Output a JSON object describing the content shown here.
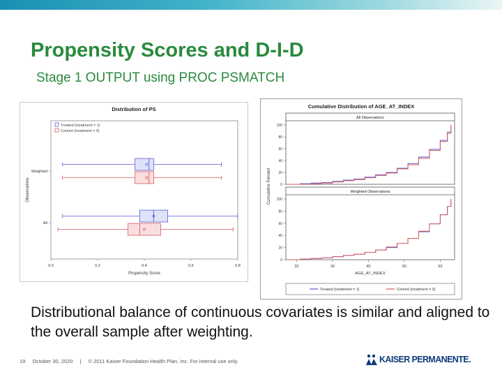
{
  "slide": {
    "title": "Propensity Scores and D-I-D",
    "subtitle": "Stage 1 OUTPUT using PROC PSMATCH",
    "body": "Distributional balance of continuous covariates is similar and aligned to the overall sample after weighting.",
    "footer": {
      "page_number": "19",
      "date": "October 30, 2020",
      "separator": "|",
      "copyright": "© 2011 Kaiser Foundation Health Plan, Inc. For internal use only."
    },
    "logo": {
      "text": "KAISER PERMANENTE.",
      "color": "#0d3b7a"
    },
    "accent_colors": {
      "title": "#2a8a3e",
      "treated": "#5b5bd6",
      "control": "#d65b5b"
    }
  },
  "chart_data": [
    {
      "type": "boxplot",
      "title": "Distribution of PS",
      "xlabel": "Propensity Score",
      "ylabel": "Observations",
      "xlim": [
        0,
        0.8
      ],
      "x_ticks": [
        "0.0",
        "0.2",
        "0.4",
        "0.6",
        "0.8"
      ],
      "legend": {
        "placement": "top-left",
        "entries": [
          "Treated (treatment = 1)",
          "Control (treatment = 0)"
        ]
      },
      "groups": [
        {
          "label": "Weighted",
          "boxes": [
            {
              "series": "Treated (treatment = 1)",
              "min": 0.05,
              "q1": 0.36,
              "median": 0.42,
              "q3": 0.44,
              "max": 0.73,
              "mean": 0.41
            },
            {
              "series": "Control (treatment = 0)",
              "min": 0.05,
              "q1": 0.36,
              "median": 0.42,
              "q3": 0.44,
              "max": 0.73,
              "mean": 0.41
            }
          ]
        },
        {
          "label": "All",
          "boxes": [
            {
              "series": "Treated (treatment = 1)",
              "min": 0.05,
              "q1": 0.38,
              "median": 0.44,
              "q3": 0.5,
              "max": 0.8,
              "mean": 0.44
            },
            {
              "series": "Control (treatment = 0)",
              "min": 0.03,
              "q1": 0.33,
              "median": 0.38,
              "q3": 0.47,
              "max": 0.78,
              "mean": 0.4
            }
          ]
        }
      ]
    },
    {
      "type": "line",
      "title": "Cumulative Distribution of AGE_AT_INDEX",
      "xlabel": "AGE_AT_INDEX",
      "ylabel": "Cumulative Percent",
      "xlim": [
        17,
        64
      ],
      "ylim": [
        0,
        100
      ],
      "x_ticks": [
        "20",
        "30",
        "40",
        "50",
        "60"
      ],
      "y_ticks": [
        "0",
        "20",
        "40",
        "60",
        "80",
        "100"
      ],
      "legend": {
        "placement": "bottom",
        "entries": [
          "Treated (treatment = 1)",
          "Control (treatment = 0)"
        ]
      },
      "panels": [
        {
          "label": "All Observations",
          "series": [
            {
              "name": "Treated (treatment = 1)",
              "x": [
                18,
                21,
                24,
                27,
                30,
                33,
                36,
                39,
                42,
                45,
                48,
                51,
                54,
                57,
                60,
                62,
                63
              ],
              "y": [
                0,
                1,
                2,
                3,
                5,
                7,
                9,
                12,
                16,
                20,
                27,
                35,
                46,
                59,
                74,
                88,
                100
              ]
            },
            {
              "name": "Control (treatment = 0)",
              "x": [
                18,
                21,
                24,
                27,
                30,
                33,
                36,
                39,
                42,
                45,
                48,
                51,
                54,
                57,
                60,
                62,
                63
              ],
              "y": [
                0,
                0,
                1,
                2,
                4,
                6,
                8,
                11,
                15,
                19,
                26,
                33,
                44,
                57,
                72,
                86,
                100
              ]
            }
          ]
        },
        {
          "label": "Weighted Observations",
          "series": [
            {
              "name": "Treated (treatment = 1)",
              "x": [
                18,
                21,
                24,
                27,
                30,
                33,
                36,
                39,
                42,
                45,
                48,
                51,
                54,
                57,
                60,
                62,
                63
              ],
              "y": [
                0,
                1,
                2,
                3,
                5,
                7,
                9,
                12,
                16,
                20,
                27,
                35,
                46,
                59,
                74,
                88,
                100
              ]
            },
            {
              "name": "Control (treatment = 0)",
              "x": [
                18,
                21,
                24,
                27,
                30,
                33,
                36,
                39,
                42,
                45,
                48,
                51,
                54,
                57,
                60,
                62,
                63
              ],
              "y": [
                0,
                1,
                2,
                3,
                5,
                7,
                9,
                12,
                16,
                21,
                27,
                35,
                47,
                59,
                74,
                88,
                100
              ]
            }
          ]
        }
      ]
    }
  ]
}
